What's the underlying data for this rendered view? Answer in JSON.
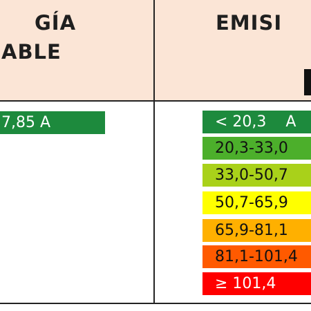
{
  "header": {
    "left_lines": [
      "GÍA",
      "ABLE"
    ],
    "right": "EMISI"
  },
  "rating": {
    "value": "7,85 A"
  },
  "scale": {
    "first_letter": "A",
    "rows": [
      {
        "label": "< 20,3",
        "color": "#1d8a3d",
        "text_color": "#ffffff"
      },
      {
        "label": "20,3-33,0",
        "color": "#4caf2b",
        "text_color": "#111111"
      },
      {
        "label": "33,0-50,7",
        "color": "#a9d11a",
        "text_color": "#111111"
      },
      {
        "label": "50,7-65,9",
        "color": "#ffff00",
        "text_color": "#111111"
      },
      {
        "label": "65,9-81,1",
        "color": "#ffb000",
        "text_color": "#111111"
      },
      {
        "label": "81,1-101,4",
        "color": "#ff5a00",
        "text_color": "#111111"
      },
      {
        "label": "≥ 101,4",
        "color": "#ff0000",
        "text_color": "#ffffff"
      }
    ]
  }
}
